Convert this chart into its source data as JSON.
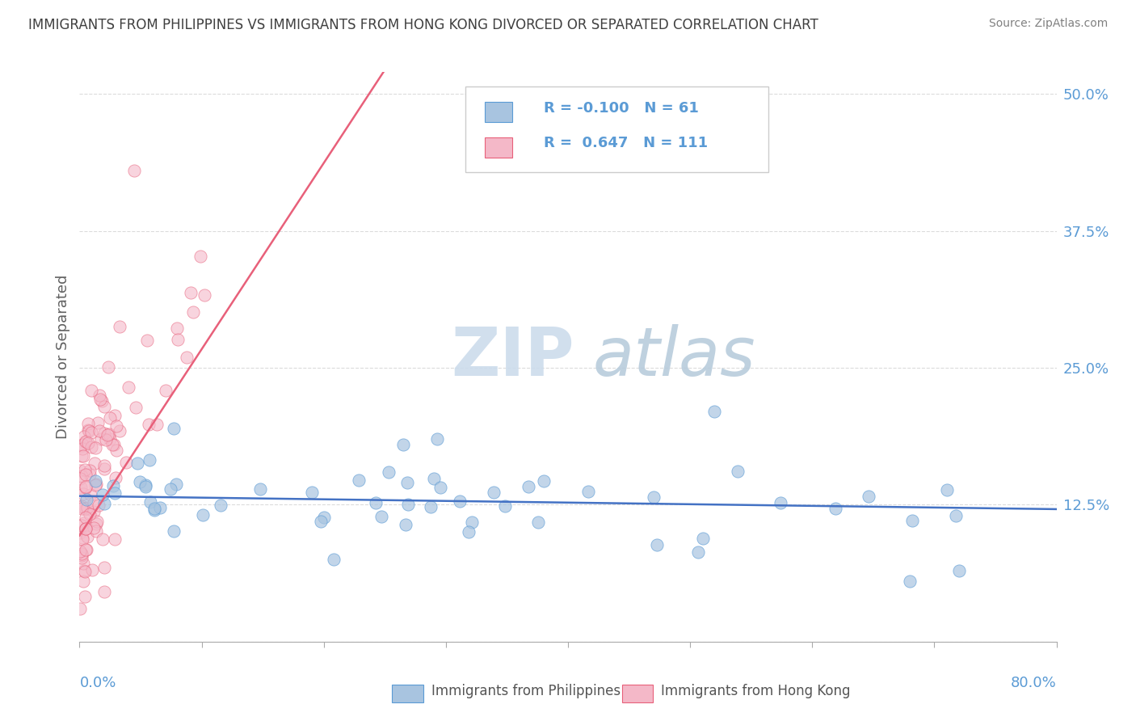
{
  "title": "IMMIGRANTS FROM PHILIPPINES VS IMMIGRANTS FROM HONG KONG DIVORCED OR SEPARATED CORRELATION CHART",
  "source": "Source: ZipAtlas.com",
  "ylabel": "Divorced or Separated",
  "yticks": [
    0.0,
    0.125,
    0.25,
    0.375,
    0.5
  ],
  "xlim": [
    0.0,
    0.8
  ],
  "ylim": [
    0.0,
    0.52
  ],
  "legend_r_blue": "-0.100",
  "legend_n_blue": "61",
  "legend_r_pink": "0.647",
  "legend_n_pink": "111",
  "legend_label_blue": "Immigrants from Philippines",
  "legend_label_pink": "Immigrants from Hong Kong",
  "blue_fill": "#a8c4e0",
  "blue_edge": "#5b9bd5",
  "pink_fill": "#f4b8c8",
  "pink_edge": "#e8607a",
  "blue_line_color": "#4472c4",
  "pink_line_color": "#e8607a",
  "watermark_zip_color": "#ccdcec",
  "watermark_atlas_color": "#b8ccdc",
  "title_color": "#404040",
  "source_color": "#808080",
  "ylabel_color": "#606060",
  "ytick_color": "#5b9bd5",
  "xlabel_color": "#5b9bd5",
  "grid_color": "#cccccc",
  "legend_border_color": "#cccccc",
  "legend_text_color": "#5b9bd5"
}
